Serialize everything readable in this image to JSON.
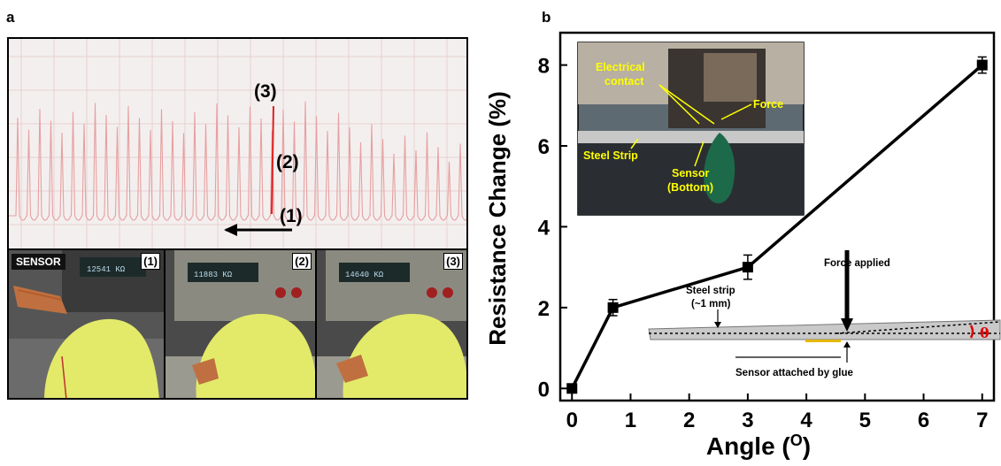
{
  "panel_a": {
    "letter": "a",
    "trace_labels": {
      "l1": "(1)",
      "l2": "(2)",
      "l3": "(3)"
    },
    "photos": [
      {
        "num": "(1)",
        "tag": "SENSOR",
        "readout": "12541 KΩ"
      },
      {
        "num": "(2)",
        "readout": "11883 KΩ"
      },
      {
        "num": "(3)",
        "readout": "14640 KΩ"
      }
    ]
  },
  "panel_b": {
    "letter": "b",
    "inset_labels": {
      "electrical_contact_1": "Electrical",
      "electrical_contact_2": "contact",
      "force": "Force",
      "steel_strip": "Steel Strip",
      "sensor_1": "Sensor",
      "sensor_2": "(Bottom)"
    },
    "schematic_labels": {
      "force_applied": "Force applied",
      "steel_strip_1": "Steel strip",
      "steel_strip_2": "(~1 mm)",
      "sensor_glue": "Sensor attached by glue",
      "theta": "θ"
    }
  },
  "chart_data": {
    "type": "line",
    "xlabel": "Angle (",
    "xlabel_sup": "O",
    "xlabel_close": ")",
    "ylabel": "Resistance Change (%)",
    "xlim": [
      -0.2,
      7.2
    ],
    "ylim": [
      -0.3,
      8.8
    ],
    "xticks": [
      0,
      1,
      2,
      3,
      4,
      5,
      6,
      7
    ],
    "yticks": [
      0,
      2,
      4,
      6,
      8
    ],
    "series": [
      {
        "marker": "square",
        "color": "#000000",
        "x": [
          0,
          0.7,
          3,
          7
        ],
        "y": [
          0,
          2.0,
          3.0,
          8.0
        ],
        "yerr": [
          0.05,
          0.2,
          0.3,
          0.2
        ]
      }
    ]
  },
  "colors": {
    "inset_text": "#ffff00",
    "trace": "#e24040",
    "glove": "#e3ea6a",
    "angle_mark": "#e00000"
  }
}
